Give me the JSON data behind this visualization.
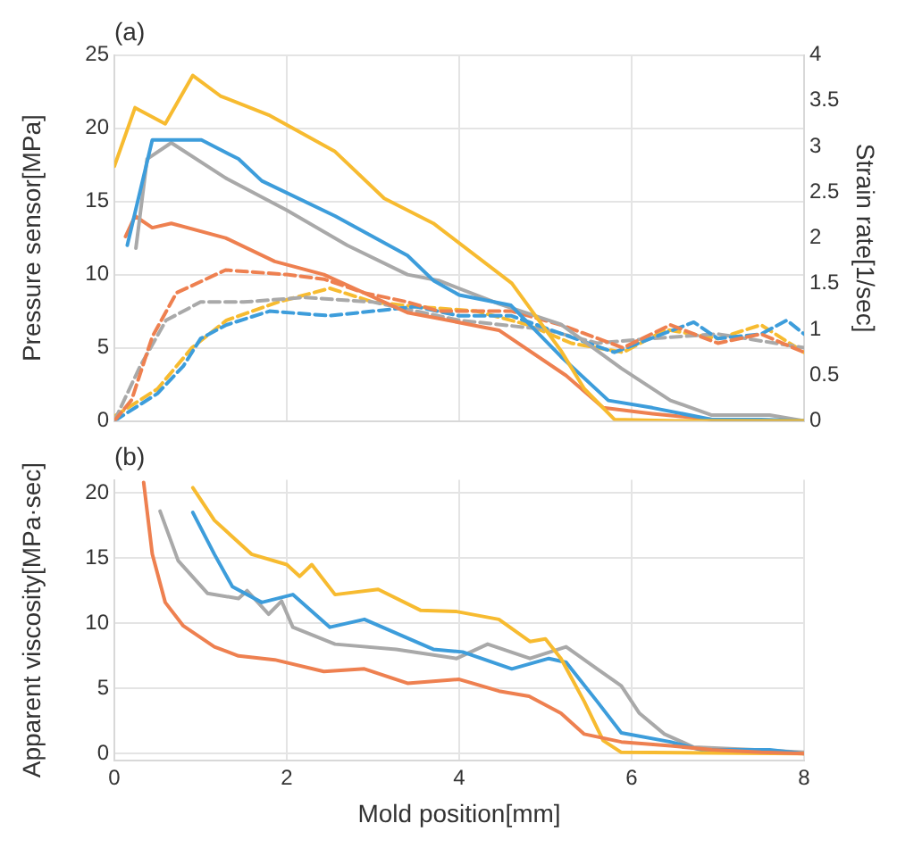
{
  "chart_data": [
    {
      "type": "line",
      "title": "(a)",
      "ylabel": "Pressure sensor[MPa]",
      "y2label": "Strain rate[1/sec]",
      "xlim": [
        0,
        8
      ],
      "xticks": [
        0,
        2,
        4,
        6,
        8
      ],
      "ylim": [
        0,
        25
      ],
      "yticks": [
        0,
        5,
        10,
        15,
        20,
        25
      ],
      "y2lim": [
        0,
        4
      ],
      "y2ticks": [
        0,
        0.5,
        1,
        1.5,
        2,
        2.5,
        3,
        3.5,
        4
      ],
      "tick_labels": "y",
      "grid": true,
      "legend": false,
      "line_style": "solid",
      "marker": "none",
      "series": [
        {
          "color": "#f7bb30",
          "x": [
            0,
            0.24,
            0.59,
            0.91,
            1.23,
            1.79,
            2.56,
            3.13,
            3.7,
            4.61,
            5.18,
            5.45,
            5.8,
            6.5,
            7.5,
            8
          ],
          "values": [
            17.4,
            21.4,
            20.3,
            23.6,
            22.2,
            20.9,
            18.4,
            15.2,
            13.5,
            9.4,
            4.8,
            2.2,
            0.1,
            0,
            0,
            0
          ]
        },
        {
          "color": "#3d9ddb",
          "x": [
            0.15,
            0.44,
            1.01,
            1.44,
            1.71,
            2.56,
            3.4,
            3.7,
            4.0,
            4.6,
            5.18,
            5.73,
            6.24,
            6.93,
            7.5,
            8
          ],
          "values": [
            12,
            19.2,
            19.2,
            17.9,
            16.4,
            14,
            11.3,
            9.6,
            8.6,
            7.9,
            4.4,
            1.4,
            0.9,
            0.1,
            0.1,
            0
          ]
        },
        {
          "color": "#a9a9a9",
          "x": [
            0.25,
            0.38,
            0.66,
            1.29,
            2.0,
            2.7,
            3.4,
            3.76,
            4.46,
            5.18,
            5.88,
            6.45,
            6.93,
            7.6,
            8
          ],
          "values": [
            11.8,
            17.9,
            19,
            16.6,
            14.4,
            12,
            10,
            9.6,
            8,
            6.6,
            3.6,
            1.4,
            0.4,
            0.4,
            0
          ]
        },
        {
          "color": "#ee8050",
          "x": [
            0.13,
            0.24,
            0.44,
            0.66,
            1.29,
            1.86,
            2.43,
            3.4,
            3.76,
            4.46,
            5.24,
            5.67,
            6.24,
            6.93,
            8
          ],
          "values": [
            12.6,
            14,
            13.2,
            13.5,
            12.5,
            10.9,
            10,
            7.4,
            7,
            6.2,
            3.1,
            0.9,
            0.5,
            0.1,
            0
          ]
        },
        {
          "color": "#ee8050",
          "axis": "y2",
          "line_style": "dashed",
          "x": [
            0,
            0.2,
            0.44,
            0.72,
            1.29,
            2.0,
            2.43,
            2.9,
            3.4,
            3.76,
            4.61,
            5.18,
            5.9,
            6.45,
            7.0,
            7.5,
            8
          ],
          "values": [
            0,
            0.23,
            0.92,
            1.4,
            1.65,
            1.6,
            1.55,
            1.4,
            1.3,
            1.2,
            1.2,
            1.05,
            0.8,
            1.05,
            0.85,
            0.95,
            0.75
          ]
        },
        {
          "color": "#3d9ddb",
          "axis": "y2",
          "line_style": "dashed",
          "x": [
            0,
            0.5,
            0.8,
            1.0,
            1.3,
            1.8,
            2.5,
            3.0,
            3.5,
            4.0,
            4.6,
            5.2,
            5.8,
            6.72,
            7.0,
            7.5,
            7.8,
            8
          ],
          "values": [
            0,
            0.3,
            0.6,
            0.9,
            1.05,
            1.2,
            1.15,
            1.2,
            1.25,
            1.15,
            1.15,
            0.95,
            0.75,
            1.08,
            0.9,
            0.95,
            1.1,
            0.95
          ]
        },
        {
          "color": "#a9a9a9",
          "axis": "y2",
          "line_style": "dashed",
          "x": [
            0,
            0.3,
            0.6,
            1.0,
            1.5,
            2.2,
            3.0,
            4.0,
            5.0,
            5.6,
            6.2,
            7.0,
            8
          ],
          "values": [
            0,
            0.6,
            1.1,
            1.3,
            1.3,
            1.35,
            1.3,
            1.1,
            1.0,
            0.85,
            0.9,
            0.95,
            0.8
          ]
        },
        {
          "color": "#f7bb30",
          "axis": "y2",
          "line_style": "dashed",
          "x": [
            0,
            0.5,
            0.9,
            1.3,
            1.9,
            2.5,
            3.0,
            3.5,
            4.2,
            4.8,
            5.3,
            5.9,
            6.4,
            7.0,
            7.5,
            8
          ],
          "values": [
            0.05,
            0.35,
            0.8,
            1.1,
            1.3,
            1.45,
            1.3,
            1.25,
            1.2,
            1.05,
            0.85,
            0.75,
            1.0,
            0.9,
            1.05,
            0.75
          ]
        }
      ]
    },
    {
      "type": "line",
      "title": "(b)",
      "xlabel": "Mold position[mm]",
      "ylabel": "Apparent viscosity[MPa·sec]",
      "xlim": [
        0,
        8
      ],
      "xticks": [
        0,
        2,
        4,
        6,
        8
      ],
      "ylim": [
        -0.5,
        21
      ],
      "yticks": [
        0,
        5,
        10,
        15,
        20
      ],
      "grid": true,
      "legend": false,
      "line_style": "solid",
      "marker": "none",
      "series": [
        {
          "color": "#ee8050",
          "x": [
            0.34,
            0.44,
            0.59,
            0.8,
            1.16,
            1.44,
            1.86,
            2.43,
            2.9,
            3.4,
            4.0,
            4.46,
            4.81,
            5.18,
            5.45,
            5.88,
            6.45,
            6.93,
            7.5,
            8
          ],
          "values": [
            20.8,
            15.3,
            11.6,
            9.8,
            8.2,
            7.5,
            7.2,
            6.3,
            6.5,
            5.4,
            5.7,
            4.8,
            4.4,
            3.1,
            1.5,
            0.9,
            0.6,
            0.3,
            0.1,
            0
          ]
        },
        {
          "color": "#f7bb30",
          "x": [
            0.91,
            1.16,
            1.59,
            2.0,
            2.15,
            2.29,
            2.56,
            3.06,
            3.55,
            3.97,
            4.46,
            4.82,
            5.0,
            5.18,
            5.45,
            5.67,
            5.88,
            8
          ],
          "values": [
            20.4,
            17.9,
            15.3,
            14.5,
            13.6,
            14.5,
            12.2,
            12.6,
            11,
            10.9,
            10.3,
            8.6,
            8.8,
            7.3,
            4,
            1,
            0.1,
            0
          ]
        },
        {
          "color": "#3d9ddb",
          "x": [
            0.91,
            1.16,
            1.37,
            1.71,
            2.07,
            2.5,
            2.9,
            3.49,
            3.7,
            4.04,
            4.61,
            5.04,
            5.24,
            5.6,
            5.88,
            6.45,
            6.8,
            7.6,
            8
          ],
          "values": [
            18.5,
            15.3,
            12.8,
            11.6,
            12.2,
            9.7,
            10.3,
            8.6,
            8,
            7.8,
            6.5,
            7.3,
            7,
            4,
            1.6,
            0.9,
            0.3,
            0.3,
            0
          ]
        },
        {
          "color": "#a9a9a9",
          "x": [
            0.53,
            0.74,
            1.08,
            1.44,
            1.54,
            1.79,
            1.94,
            2.07,
            2.56,
            3.27,
            3.97,
            4.33,
            4.82,
            5.24,
            5.6,
            5.88,
            6.09,
            6.38,
            6.72,
            7.43,
            8
          ],
          "values": [
            18.6,
            14.8,
            12.3,
            11.9,
            12.5,
            10.7,
            11.7,
            9.7,
            8.4,
            8,
            7.3,
            8.4,
            7.3,
            8.2,
            6.5,
            5.2,
            3.1,
            1.5,
            0.5,
            0.3,
            0.1
          ]
        }
      ]
    }
  ]
}
